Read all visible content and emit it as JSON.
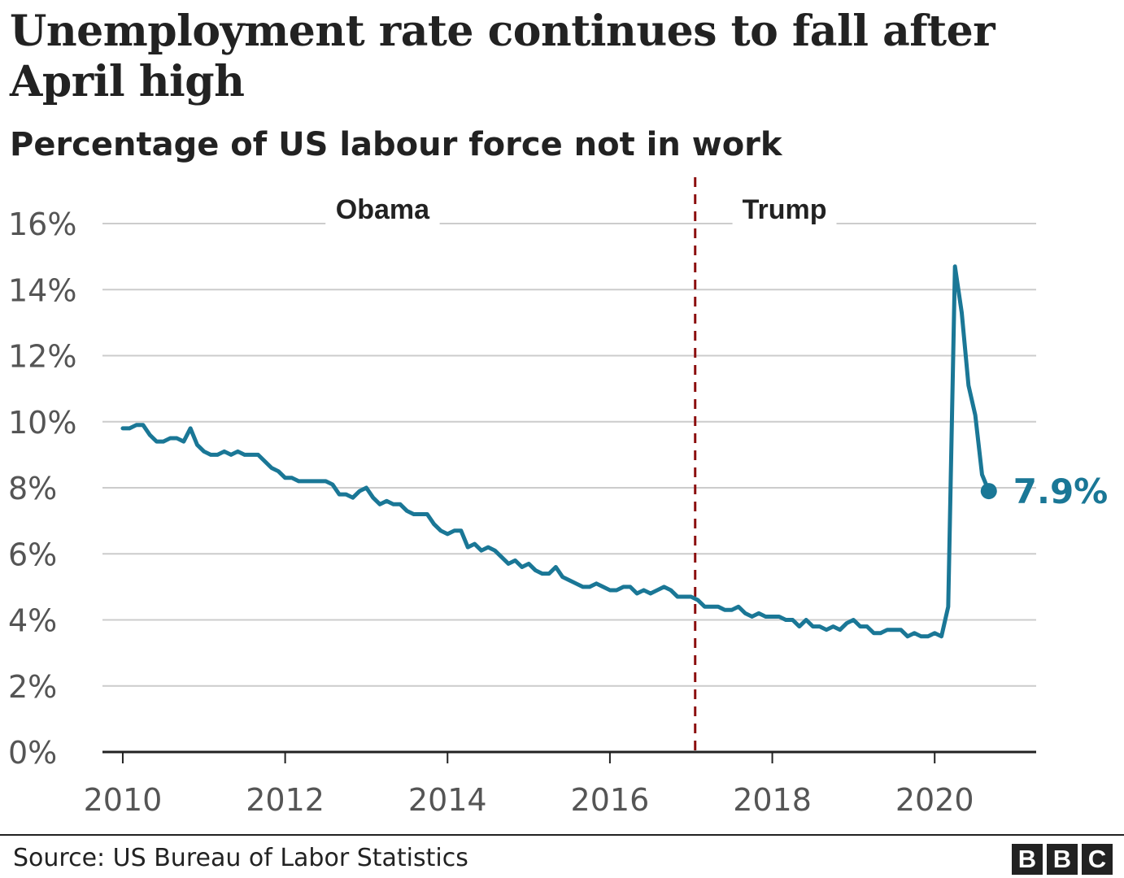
{
  "colors": {
    "line": "#1a7796",
    "divider": "#8b0e0e",
    "grid": "#cccccc",
    "axis": "#222222",
    "tick_text": "#555555"
  },
  "footer": {
    "source": "Source: US Bureau of Labor Statistics",
    "logo_letters": [
      "B",
      "B",
      "C"
    ]
  },
  "chart_data": {
    "type": "line",
    "title": "Unemployment rate continues to fall after April high",
    "subtitle": "Percentage of US labour force not in work",
    "xlabel": "",
    "ylabel": "",
    "xlim": [
      2009.75,
      2021.25
    ],
    "ylim": [
      0,
      16
    ],
    "y_ticks": [
      0,
      2,
      4,
      6,
      8,
      10,
      12,
      14,
      16
    ],
    "y_tick_labels": [
      "0%",
      "2%",
      "4%",
      "6%",
      "8%",
      "10%",
      "12%",
      "14%",
      "16%"
    ],
    "x_ticks": [
      2010,
      2012,
      2014,
      2016,
      2018,
      2020
    ],
    "x_tick_labels": [
      "2010",
      "2012",
      "2014",
      "2016",
      "2018",
      "2020"
    ],
    "grid": true,
    "divider": {
      "x": 2017.05,
      "style": "dashed"
    },
    "eras": [
      {
        "name": "Obama",
        "x": 2013.2
      },
      {
        "name": "Trump",
        "x": 2018.15
      }
    ],
    "series": [
      {
        "name": "Unemployment rate",
        "start": "2010-01",
        "step": "monthly",
        "values": [
          9.8,
          9.8,
          9.9,
          9.9,
          9.6,
          9.4,
          9.4,
          9.5,
          9.5,
          9.4,
          9.8,
          9.3,
          9.1,
          9.0,
          9.0,
          9.1,
          9.0,
          9.1,
          9.0,
          9.0,
          9.0,
          8.8,
          8.6,
          8.5,
          8.3,
          8.3,
          8.2,
          8.2,
          8.2,
          8.2,
          8.2,
          8.1,
          7.8,
          7.8,
          7.7,
          7.9,
          8.0,
          7.7,
          7.5,
          7.6,
          7.5,
          7.5,
          7.3,
          7.2,
          7.2,
          7.2,
          6.9,
          6.7,
          6.6,
          6.7,
          6.7,
          6.2,
          6.3,
          6.1,
          6.2,
          6.1,
          5.9,
          5.7,
          5.8,
          5.6,
          5.7,
          5.5,
          5.4,
          5.4,
          5.6,
          5.3,
          5.2,
          5.1,
          5.0,
          5.0,
          5.1,
          5.0,
          4.9,
          4.9,
          5.0,
          5.0,
          4.8,
          4.9,
          4.8,
          4.9,
          5.0,
          4.9,
          4.7,
          4.7,
          4.7,
          4.6,
          4.4,
          4.4,
          4.4,
          4.3,
          4.3,
          4.4,
          4.2,
          4.1,
          4.2,
          4.1,
          4.1,
          4.1,
          4.0,
          4.0,
          3.8,
          4.0,
          3.8,
          3.8,
          3.7,
          3.8,
          3.7,
          3.9,
          4.0,
          3.8,
          3.8,
          3.6,
          3.6,
          3.7,
          3.7,
          3.7,
          3.5,
          3.6,
          3.5,
          3.5,
          3.6,
          3.5,
          4.4,
          14.7,
          13.3,
          11.1,
          10.2,
          8.4,
          7.9
        ]
      }
    ],
    "end_label": "7.9%"
  }
}
